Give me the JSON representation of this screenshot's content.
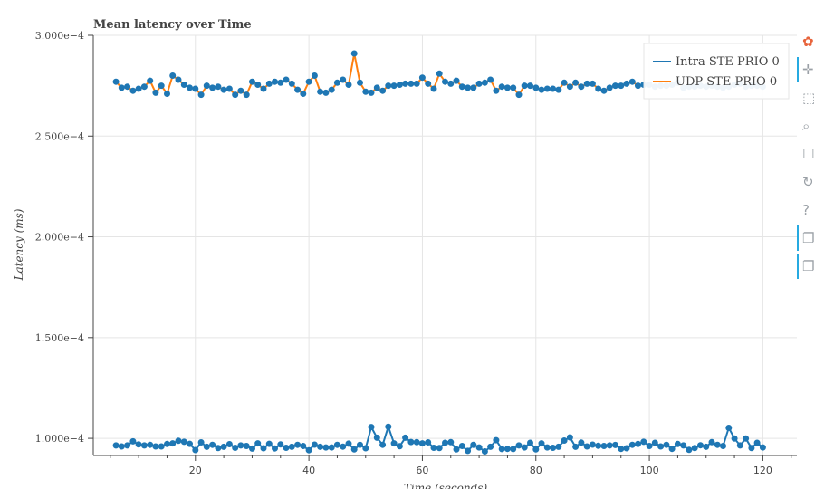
{
  "chart_data": {
    "type": "line",
    "title": "Mean latency over Time",
    "xlabel": "Time (seconds)",
    "ylabel": "Latency (ms)",
    "xlim": [
      2,
      126
    ],
    "ylim": [
      9.15e-05,
      0.0003
    ],
    "x_ticks": [
      20,
      40,
      60,
      80,
      100,
      120
    ],
    "x_tick_labels": [
      "20",
      "40",
      "60",
      "80",
      "100",
      "120"
    ],
    "y_ticks": [
      0.0001,
      0.00015,
      0.0002,
      0.00025,
      0.0003
    ],
    "y_tick_labels": [
      "1.000e−4",
      "1.500e−4",
      "2.000e−4",
      "2.500e−4",
      "3.000e−4"
    ],
    "grid": true,
    "legend_position": "top-right",
    "x": [
      6,
      7,
      8,
      9,
      10,
      11,
      12,
      13,
      14,
      15,
      16,
      17,
      18,
      19,
      20,
      21,
      22,
      23,
      24,
      25,
      26,
      27,
      28,
      29,
      30,
      31,
      32,
      33,
      34,
      35,
      36,
      37,
      38,
      39,
      40,
      41,
      42,
      43,
      44,
      45,
      46,
      47,
      48,
      49,
      50,
      51,
      52,
      53,
      54,
      55,
      56,
      57,
      58,
      59,
      60,
      61,
      62,
      63,
      64,
      65,
      66,
      67,
      68,
      69,
      70,
      71,
      72,
      73,
      74,
      75,
      76,
      77,
      78,
      79,
      80,
      81,
      82,
      83,
      84,
      85,
      86,
      87,
      88,
      89,
      90,
      91,
      92,
      93,
      94,
      95,
      96,
      97,
      98,
      99,
      100,
      101,
      102,
      103,
      104,
      105,
      106,
      107,
      108,
      109,
      110,
      111,
      112,
      113,
      114,
      115,
      116,
      117,
      118,
      119,
      120
    ],
    "series": [
      {
        "name": "Intra STE PRIO 0",
        "color": "#1f77b4",
        "values": [
          9.65e-05,
          9.6e-05,
          9.65e-05,
          9.85e-05,
          9.7e-05,
          9.65e-05,
          9.68e-05,
          9.6e-05,
          9.6e-05,
          9.72e-05,
          9.75e-05,
          9.88e-05,
          9.83e-05,
          9.73e-05,
          9.42e-05,
          9.8e-05,
          9.58e-05,
          9.68e-05,
          9.52e-05,
          9.58e-05,
          9.71e-05,
          9.53e-05,
          9.65e-05,
          9.62e-05,
          9.49e-05,
          9.75e-05,
          9.51e-05,
          9.73e-05,
          9.5e-05,
          9.7e-05,
          9.53e-05,
          9.58e-05,
          9.68e-05,
          9.62e-05,
          9.41e-05,
          9.69e-05,
          9.58e-05,
          9.55e-05,
          9.55e-05,
          9.68e-05,
          9.59e-05,
          9.74e-05,
          9.45e-05,
          9.68e-05,
          9.51e-05,
          0.0001056,
          0.0001003,
          9.68e-05,
          0.0001058,
          9.75e-05,
          9.61e-05,
          0.0001003,
          9.82e-05,
          9.81e-05,
          9.75e-05,
          9.8e-05,
          9.53e-05,
          9.52e-05,
          9.78e-05,
          9.81e-05,
          9.45e-05,
          9.62e-05,
          9.38e-05,
          9.68e-05,
          9.55e-05,
          9.35e-05,
          9.58e-05,
          9.91e-05,
          9.47e-05,
          9.48e-05,
          9.47e-05,
          9.65e-05,
          9.55e-05,
          9.78e-05,
          9.45e-05,
          9.75e-05,
          9.55e-05,
          9.53e-05,
          9.58e-05,
          9.89e-05,
          0.0001005,
          9.58e-05,
          9.79e-05,
          9.6e-05,
          9.69e-05,
          9.63e-05,
          9.62e-05,
          9.65e-05,
          9.67e-05,
          9.48e-05,
          9.51e-05,
          9.68e-05,
          9.72e-05,
          9.83e-05,
          9.62e-05,
          9.78e-05,
          9.6e-05,
          9.68e-05,
          9.48e-05,
          9.72e-05,
          9.65e-05,
          9.43e-05,
          9.52e-05,
          9.66e-05,
          9.58e-05,
          9.81e-05,
          9.68e-05,
          9.62e-05,
          0.0001052,
          9.99e-05,
          9.65e-05,
          9.99e-05,
          9.52e-05,
          9.78e-05,
          9.55e-05
        ]
      },
      {
        "name": "UDP STE PRIO 0",
        "color": "#ff7f0e",
        "values": [
          0.000277,
          0.000274,
          0.0002745,
          0.0002725,
          0.0002735,
          0.0002745,
          0.0002775,
          0.0002715,
          0.000275,
          0.000271,
          0.00028,
          0.000278,
          0.0002755,
          0.000274,
          0.0002735,
          0.0002705,
          0.000275,
          0.000274,
          0.0002745,
          0.000273,
          0.0002735,
          0.0002705,
          0.0002725,
          0.0002705,
          0.000277,
          0.0002755,
          0.0002735,
          0.000276,
          0.000277,
          0.0002765,
          0.000278,
          0.000276,
          0.000273,
          0.000271,
          0.000277,
          0.00028,
          0.000272,
          0.0002715,
          0.000273,
          0.0002765,
          0.000278,
          0.0002755,
          0.000291,
          0.0002765,
          0.000272,
          0.0002715,
          0.000274,
          0.0002725,
          0.000275,
          0.000275,
          0.0002755,
          0.000276,
          0.000276,
          0.000276,
          0.000279,
          0.000276,
          0.0002735,
          0.000281,
          0.000277,
          0.000276,
          0.0002775,
          0.0002745,
          0.000274,
          0.000274,
          0.000276,
          0.0002765,
          0.000278,
          0.0002725,
          0.0002745,
          0.000274,
          0.000274,
          0.0002705,
          0.000275,
          0.000275,
          0.000274,
          0.000273,
          0.0002735,
          0.0002735,
          0.000273,
          0.0002765,
          0.0002745,
          0.0002765,
          0.0002745,
          0.000276,
          0.000276,
          0.0002735,
          0.0002725,
          0.000274,
          0.000275,
          0.000275,
          0.000276,
          0.000277,
          0.000275,
          0.0002755,
          0.0002755,
          0.0002745,
          0.000275,
          0.000275,
          0.0002755,
          0.0002765,
          0.000274,
          0.0002745,
          0.0002745,
          0.000275,
          0.0002745,
          0.000275,
          0.0002745,
          0.000274,
          0.0002745,
          0.0002755,
          0.000276,
          0.0002745,
          0.000275,
          0.000275,
          0.0002745
        ]
      }
    ]
  },
  "toolbar": {
    "items": [
      {
        "name": "bokeh-logo-icon",
        "glyph": "✿",
        "active": false
      },
      {
        "name": "pan-tool-icon",
        "glyph": "✛",
        "active": true
      },
      {
        "name": "box-zoom-tool-icon",
        "glyph": "⬚",
        "active": false
      },
      {
        "name": "wheel-zoom-tool-icon",
        "glyph": "⌕",
        "active": false
      },
      {
        "name": "save-tool-icon",
        "glyph": "☐",
        "active": false
      },
      {
        "name": "reset-tool-icon",
        "glyph": "↻",
        "active": false
      },
      {
        "name": "help-tool-icon",
        "glyph": "?",
        "active": false
      },
      {
        "name": "hover-tool-icon",
        "glyph": "❐",
        "active": true
      },
      {
        "name": "hover-tool-2-icon",
        "glyph": "❐",
        "active": true
      }
    ]
  }
}
